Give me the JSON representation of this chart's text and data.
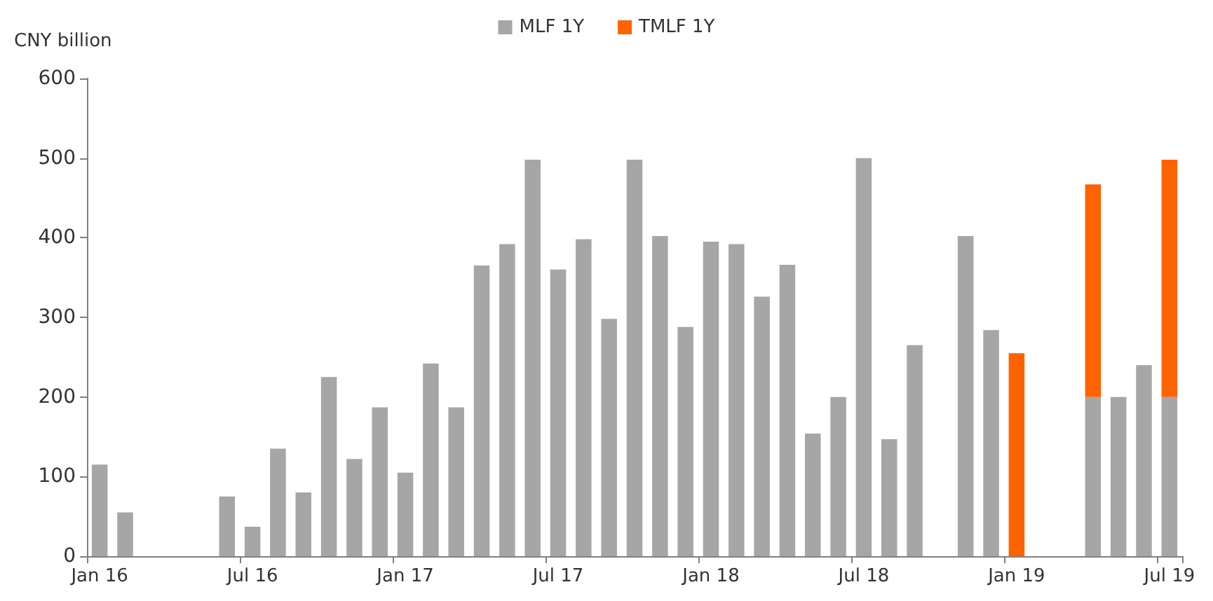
{
  "chart_data": {
    "type": "bar",
    "stacked": true,
    "ylabel": "CNY billion",
    "categories": [
      "Jan 16",
      null,
      null,
      null,
      null,
      null,
      "Jul 16",
      null,
      null,
      null,
      null,
      null,
      "Jan 17",
      null,
      null,
      null,
      null,
      null,
      "Jul 17",
      null,
      null,
      null,
      null,
      null,
      "Jan 18",
      null,
      null,
      null,
      null,
      null,
      "Jul 18",
      null,
      null,
      null,
      null,
      null,
      "Jan 19",
      null,
      null,
      null,
      null,
      null,
      "Jul 19"
    ],
    "series": [
      {
        "name": "MLF 1Y",
        "color": "#a6a6a6",
        "values": [
          115,
          55,
          null,
          null,
          null,
          75,
          37,
          135,
          80,
          225,
          122,
          187,
          105,
          242,
          187,
          365,
          392,
          498,
          360,
          398,
          298,
          498,
          402,
          288,
          395,
          392,
          326,
          366,
          154,
          200,
          500,
          147,
          265,
          null,
          402,
          284,
          null,
          null,
          null,
          200,
          200,
          240,
          200
        ]
      },
      {
        "name": "TMLF 1Y",
        "color": "#ff6200",
        "values": [
          null,
          null,
          null,
          null,
          null,
          null,
          null,
          null,
          null,
          null,
          null,
          null,
          null,
          null,
          null,
          null,
          null,
          null,
          null,
          null,
          null,
          null,
          null,
          null,
          null,
          null,
          null,
          null,
          null,
          null,
          null,
          null,
          null,
          null,
          null,
          null,
          255,
          null,
          null,
          267,
          null,
          null,
          298
        ]
      }
    ],
    "ylim": [
      0,
      600
    ],
    "yticks": [
      0,
      100,
      200,
      300,
      400,
      500,
      600
    ],
    "grid": false,
    "legend": "top"
  }
}
